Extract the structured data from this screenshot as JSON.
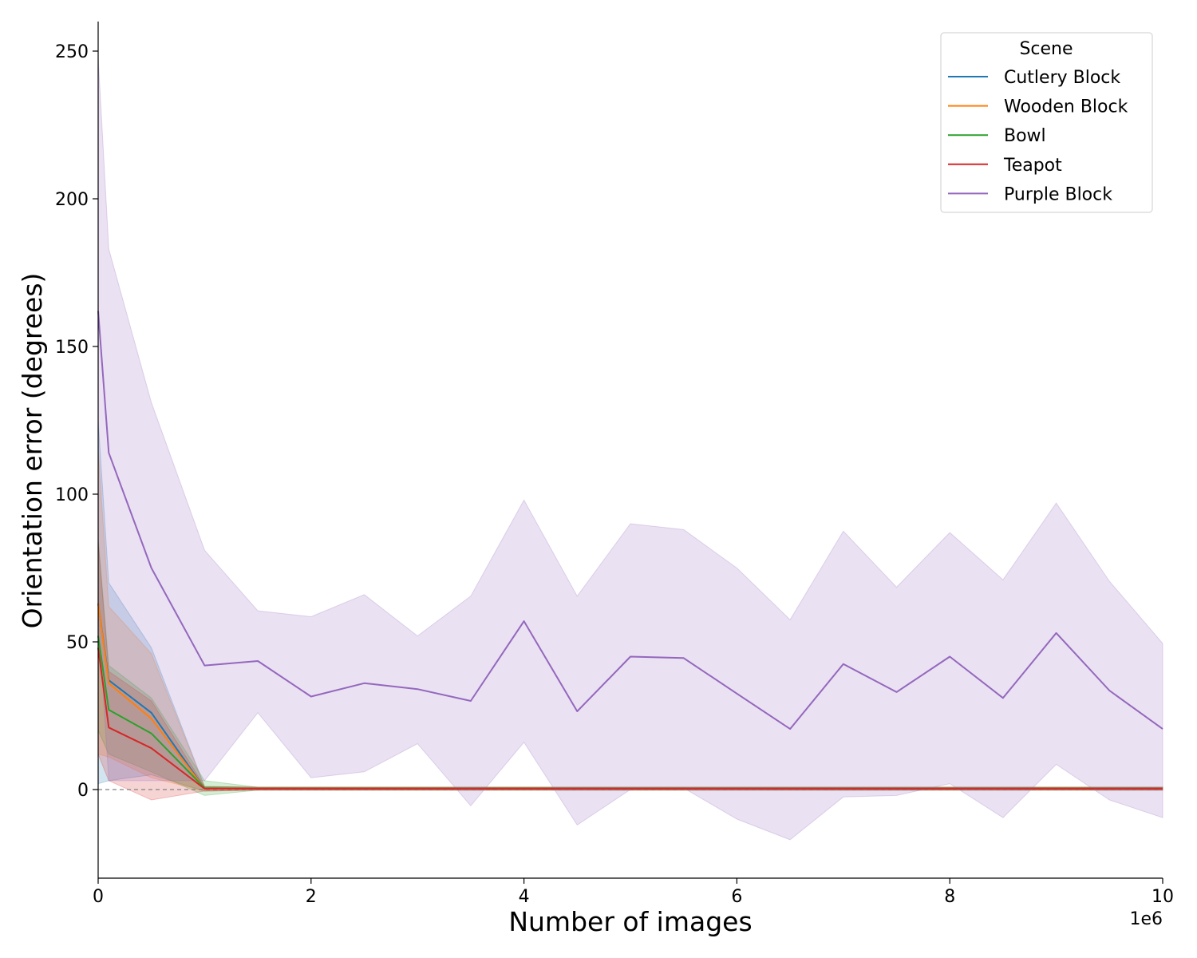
{
  "chart_data": {
    "type": "line",
    "xlabel": "Number of images",
    "ylabel": "Orientation error (degrees)",
    "x_offset_label": "1e6",
    "xlim": [
      0,
      10
    ],
    "ylim": [
      -30,
      260
    ],
    "xticks": [
      "0",
      "2",
      "4",
      "6",
      "8",
      "10"
    ],
    "yticks": [
      "0",
      "50",
      "100",
      "150",
      "200",
      "250"
    ],
    "reference_line": {
      "y": 0,
      "style": "dashed",
      "color": "#808080"
    },
    "grid": false,
    "legend": {
      "title": "Scene",
      "placement": "top-right"
    },
    "series": [
      {
        "name": "Cutlery Block",
        "color": "#1f77b4",
        "x": [
          0,
          0.1,
          0.5,
          1,
          1.5,
          2,
          2.5,
          3,
          3.5,
          4,
          4.5,
          5,
          5.5,
          6,
          6.5,
          7,
          7.5,
          8,
          8.5,
          9,
          9.5,
          10
        ],
        "mean": [
          63,
          37,
          26,
          0.3,
          0.3,
          0.3,
          0.3,
          0.3,
          0.3,
          0.3,
          0.3,
          0.3,
          0.3,
          0.3,
          0.3,
          0.3,
          0.3,
          0.3,
          0.3,
          0.3,
          0.3,
          0.3
        ],
        "upper": [
          125,
          70,
          48,
          1,
          0.8,
          0.8,
          0.8,
          0.8,
          0.8,
          0.8,
          0.8,
          0.8,
          0.8,
          0.8,
          0.8,
          0.8,
          0.8,
          0.8,
          0.8,
          0.8,
          0.8,
          0.8
        ],
        "lower": [
          2,
          3,
          5,
          -0.5,
          -0.2,
          -0.2,
          -0.2,
          -0.2,
          -0.2,
          -0.2,
          -0.2,
          -0.2,
          -0.2,
          -0.2,
          -0.2,
          -0.2,
          -0.2,
          -0.2,
          -0.2,
          -0.2,
          -0.2,
          -0.2
        ]
      },
      {
        "name": "Wooden Block",
        "color": "#ff7f0e",
        "x": [
          0,
          0.1,
          0.5,
          1,
          1.5,
          2,
          2.5,
          3,
          3.5,
          4,
          4.5,
          5,
          5.5,
          6,
          6.5,
          7,
          7.5,
          8,
          8.5,
          9,
          9.5,
          10
        ],
        "mean": [
          63,
          36,
          24,
          0.3,
          0.3,
          0.3,
          0.3,
          0.3,
          0.3,
          0.3,
          0.3,
          0.3,
          0.3,
          0.3,
          0.3,
          0.3,
          0.3,
          0.3,
          0.3,
          0.3,
          0.3,
          0.3
        ],
        "upper": [
          115,
          62,
          46,
          1,
          0.8,
          0.8,
          0.8,
          0.8,
          0.8,
          0.8,
          0.8,
          0.8,
          0.8,
          0.8,
          0.8,
          0.8,
          0.8,
          0.8,
          0.8,
          0.8,
          0.8,
          0.8
        ],
        "lower": [
          12,
          11,
          4,
          -0.5,
          -0.2,
          -0.2,
          -0.2,
          -0.2,
          -0.2,
          -0.2,
          -0.2,
          -0.2,
          -0.2,
          -0.2,
          -0.2,
          -0.2,
          -0.2,
          -0.2,
          -0.2,
          -0.2,
          -0.2,
          -0.2
        ]
      },
      {
        "name": "Bowl",
        "color": "#2ca02c",
        "x": [
          0,
          0.1,
          0.5,
          1,
          1.5,
          2,
          2.5,
          3,
          3.5,
          4,
          4.5,
          5,
          5.5,
          6,
          6.5,
          7,
          7.5,
          8,
          8.5,
          9,
          9.5,
          10
        ],
        "mean": [
          52,
          27,
          19,
          0.5,
          0.3,
          0.3,
          0.3,
          0.3,
          0.3,
          0.3,
          0.3,
          0.3,
          0.3,
          0.3,
          0.3,
          0.3,
          0.3,
          0.3,
          0.3,
          0.3,
          0.3,
          0.3
        ],
        "upper": [
          85,
          42,
          31,
          3,
          0.8,
          0.8,
          0.8,
          0.8,
          0.8,
          0.8,
          0.8,
          0.8,
          0.8,
          0.8,
          0.8,
          0.8,
          0.8,
          0.8,
          0.8,
          0.8,
          0.8,
          0.8
        ],
        "lower": [
          20,
          12,
          6,
          -2,
          -0.2,
          -0.2,
          -0.2,
          -0.2,
          -0.2,
          -0.2,
          -0.2,
          -0.2,
          -0.2,
          -0.2,
          -0.2,
          -0.2,
          -0.2,
          -0.2,
          -0.2,
          -0.2,
          -0.2,
          -0.2
        ]
      },
      {
        "name": "Teapot",
        "color": "#d62728",
        "x": [
          0,
          0.1,
          0.5,
          1,
          1.5,
          2,
          2.5,
          3,
          3.5,
          4,
          4.5,
          5,
          5.5,
          6,
          6.5,
          7,
          7.5,
          8,
          8.5,
          9,
          9.5,
          10
        ],
        "mean": [
          48,
          21,
          14,
          0.3,
          0.3,
          0.3,
          0.3,
          0.3,
          0.3,
          0.3,
          0.3,
          0.3,
          0.3,
          0.3,
          0.3,
          0.3,
          0.3,
          0.3,
          0.3,
          0.3,
          0.3,
          0.3
        ],
        "upper": [
          84,
          40,
          30,
          1,
          0.8,
          0.8,
          0.8,
          0.8,
          0.8,
          0.8,
          0.8,
          0.8,
          0.8,
          0.8,
          0.8,
          0.8,
          0.8,
          0.8,
          0.8,
          0.8,
          0.8,
          0.8
        ],
        "lower": [
          12,
          3,
          -3.5,
          -0.5,
          -0.2,
          -0.2,
          -0.2,
          -0.2,
          -0.2,
          -0.2,
          -0.2,
          -0.2,
          -0.2,
          -0.2,
          -0.2,
          -0.2,
          -0.2,
          -0.2,
          -0.2,
          -0.2,
          -0.2,
          -0.2
        ]
      },
      {
        "name": "Purple Block",
        "color": "#9467bd",
        "x": [
          0,
          0.1,
          0.5,
          1,
          1.5,
          2,
          2.5,
          3,
          3.5,
          4,
          4.5,
          5,
          5.5,
          6,
          6.5,
          7,
          7.5,
          8,
          8.5,
          9,
          9.5,
          10
        ],
        "mean": [
          162,
          114,
          75,
          42,
          43.5,
          31.5,
          36,
          34,
          30,
          57,
          26.5,
          45,
          44.5,
          32.5,
          20.5,
          42.5,
          33,
          45,
          31,
          53,
          33.5,
          20.5
        ],
        "upper": [
          248,
          183,
          131,
          81,
          60.5,
          58.5,
          66,
          52,
          65.5,
          98,
          65.5,
          90,
          88,
          75,
          57.5,
          87.5,
          68.5,
          87,
          71,
          97,
          70.5,
          49.5
        ],
        "lower": [
          60,
          3,
          3,
          3,
          26,
          4,
          6,
          15.5,
          -5.5,
          16,
          -12,
          0,
          0.5,
          -10,
          -17,
          -2.5,
          -2,
          2,
          -9.5,
          8.5,
          -3.5,
          -9.5
        ]
      }
    ]
  }
}
